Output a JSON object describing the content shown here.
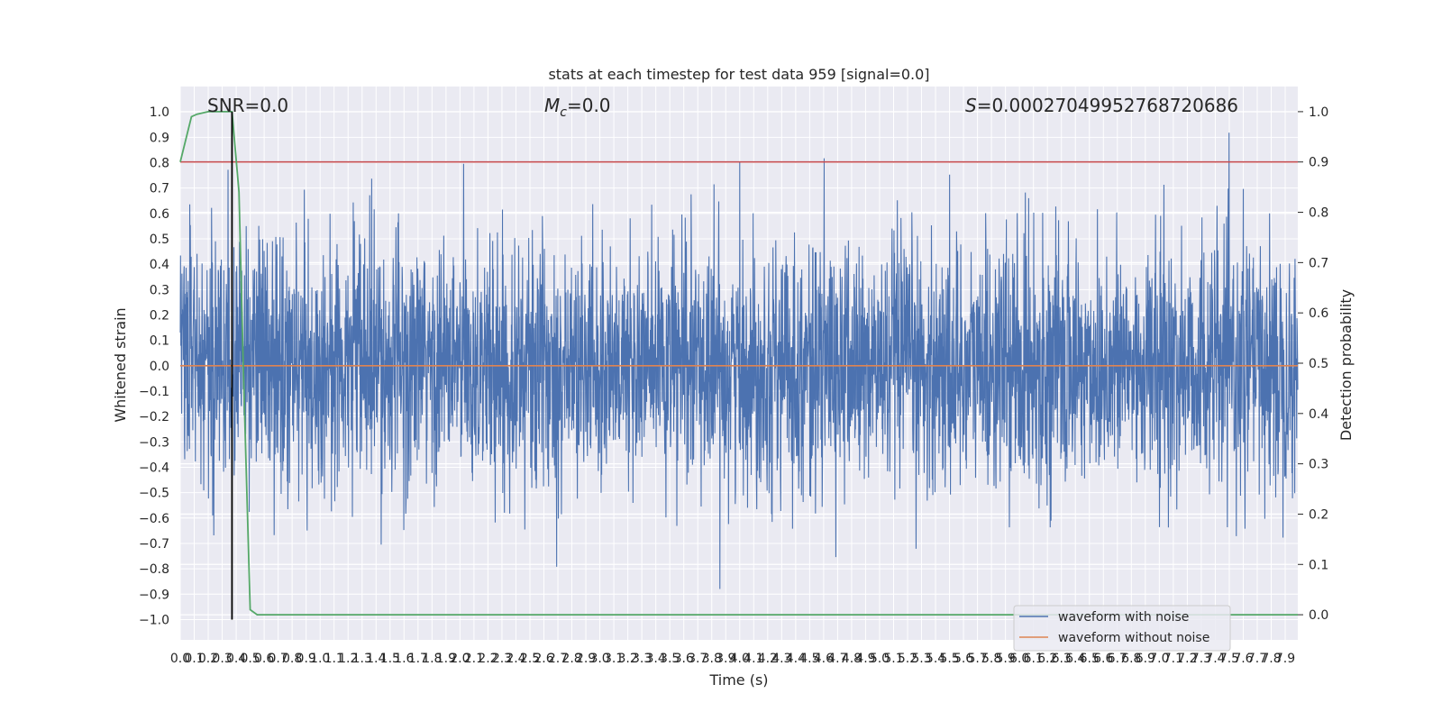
{
  "chart_data": {
    "type": "line",
    "title": "stats at each timestep for test data 959 [signal=0.0]",
    "xlabel": "Time (s)",
    "ylabel_left": "Whitened strain",
    "ylabel_right": "Detection probability",
    "xlim": [
      0.0,
      7.99
    ],
    "ylim_left": [
      -1.08,
      1.1
    ],
    "ylim_right": [
      -0.05,
      1.05
    ],
    "yticks_left": [
      "1.0",
      "0.9",
      "0.8",
      "0.7",
      "0.6",
      "0.5",
      "0.4",
      "0.3",
      "0.2",
      "0.1",
      "0.0",
      "−0.1",
      "−0.2",
      "−0.3",
      "−0.4",
      "−0.5",
      "−0.6",
      "−0.7",
      "−0.8",
      "−0.9",
      "−1.0"
    ],
    "yticks_right": [
      "1.0",
      "0.9",
      "0.8",
      "0.7",
      "0.6",
      "0.5",
      "0.4",
      "0.3",
      "0.2",
      "0.1",
      "0.0"
    ],
    "xticks": [
      "0.0",
      "0.1",
      "0.2",
      "0.3",
      "0.4",
      "0.5",
      "0.6",
      "0.7",
      "0.8",
      "0.9",
      "1.0",
      "1.1",
      "1.2",
      "1.3",
      "1.4",
      "1.5",
      "1.6",
      "1.7",
      "1.8",
      "1.9",
      "2.0",
      "2.1",
      "2.2",
      "2.3",
      "2.4",
      "2.5",
      "2.6",
      "2.7",
      "2.8",
      "2.9",
      "3.0",
      "3.1",
      "3.2",
      "3.3",
      "3.4",
      "3.5",
      "3.6",
      "3.7",
      "3.8",
      "3.9",
      "4.0",
      "4.1",
      "4.2",
      "4.3",
      "4.4",
      "4.5",
      "4.6",
      "4.7",
      "4.8",
      "4.9",
      "5.0",
      "5.1",
      "5.2",
      "5.3",
      "5.4",
      "5.5",
      "5.6",
      "5.7",
      "5.8",
      "5.9",
      "6.0",
      "6.1",
      "6.2",
      "6.3",
      "6.4",
      "6.5",
      "6.6",
      "6.7",
      "6.8",
      "6.9",
      "7.0",
      "7.1",
      "7.2",
      "7.3",
      "7.4",
      "7.5",
      "7.6",
      "7.7",
      "7.8",
      "7.9"
    ],
    "grid": true,
    "legend_position": "lower-right",
    "series": [
      {
        "name": "waveform with noise",
        "color": "#4c72b0",
        "axis": "left",
        "kind": "noise",
        "amplitude_min": -1.0,
        "amplitude_max": 1.0
      },
      {
        "name": "waveform without noise",
        "color": "#dd8452",
        "axis": "left",
        "kind": "flat",
        "value": 0.0
      },
      {
        "color": "#55a868",
        "axis": "right",
        "kind": "probability",
        "x": [
          0.0,
          0.08,
          0.12,
          0.2,
          0.25,
          0.3,
          0.37,
          0.42,
          0.45,
          0.5,
          0.55,
          0.6,
          7.99
        ],
        "y": [
          0.9,
          0.99,
          0.995,
          1.0,
          1.0,
          1.0,
          1.0,
          0.84,
          0.5,
          0.01,
          0.0,
          0.0,
          0.0
        ]
      }
    ],
    "hlines": [
      {
        "axis": "right",
        "value": 0.9,
        "color": "#c44e52"
      }
    ],
    "vlines": [
      {
        "x": 0.37,
        "color": "#000000",
        "ymin_left": -1.0,
        "ymax_left": 1.0
      }
    ],
    "annotations": {
      "snr": "SNR=0.0",
      "mc_symbol": "M",
      "mc_sub": "c",
      "mc_value": "=0.0",
      "s_symbol": "S",
      "s_value": "=0.00027049952768720686"
    }
  }
}
